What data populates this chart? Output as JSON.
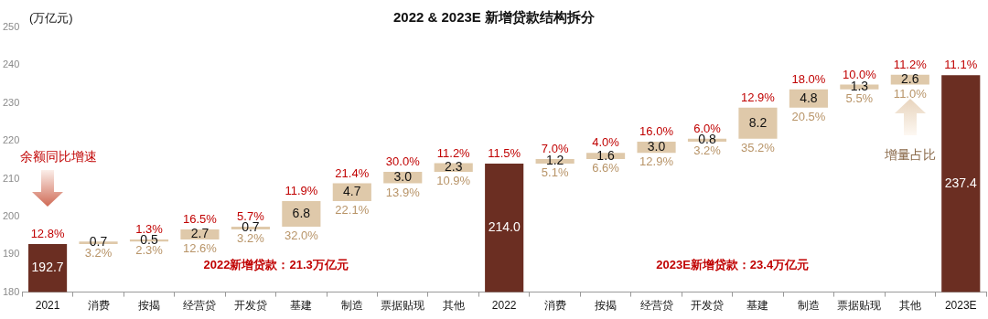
{
  "chart_data": {
    "type": "bar",
    "title": "2022 & 2023E 新增贷款结构拆分",
    "ylabel": "(万亿元)",
    "categories": [
      "2021",
      "消费",
      "按揭",
      "经营贷",
      "开发贷",
      "基建",
      "制造",
      "票据贴现",
      "其他",
      "2022",
      "消费",
      "按揭",
      "经营贷",
      "开发贷",
      "基建",
      "制造",
      "票据贴现",
      "其他",
      "2023E"
    ],
    "values": [
      192.7,
      0.7,
      0.5,
      2.7,
      0.7,
      6.8,
      4.7,
      3.0,
      2.3,
      214.0,
      1.2,
      1.6,
      3.0,
      0.8,
      8.2,
      4.8,
      1.3,
      2.6,
      237.4
    ],
    "value_labels": [
      "192.7",
      "0.7",
      "0.5",
      "2.7",
      "0.7",
      "6.8",
      "4.7",
      "3.0",
      "2.3",
      "214.0",
      "1.2",
      "1.6",
      "3.0",
      "0.8",
      "8.2",
      "4.8",
      "1.3",
      "2.6",
      "237.4"
    ],
    "base": [
      0,
      192.7,
      193.4,
      193.9,
      196.6,
      197.3,
      204.1,
      208.8,
      211.8,
      0,
      214.0,
      215.2,
      216.8,
      219.8,
      220.6,
      228.8,
      233.6,
      234.9,
      0
    ],
    "colors": [
      "#6b2e22",
      "#dfc9aa",
      "#dfc9aa",
      "#dfc9aa",
      "#dfc9aa",
      "#dfc9aa",
      "#dfc9aa",
      "#dfc9aa",
      "#dfc9aa",
      "#6b2e22",
      "#dfc9aa",
      "#dfc9aa",
      "#dfc9aa",
      "#dfc9aa",
      "#dfc9aa",
      "#dfc9aa",
      "#dfc9aa",
      "#dfc9aa",
      "#6b2e22"
    ],
    "ylim": [
      180,
      250
    ],
    "yticks": [
      180,
      190,
      200,
      210,
      220,
      230,
      240,
      250
    ],
    "grid": false,
    "legend": false,
    "annotations": [
      "余额同比增速",
      "2022新增贷款：21.3万亿元",
      "2023E新增贷款：23.4万亿元",
      "增量占比",
      "12.8%",
      "1.3%",
      "16.5%",
      "5.7%",
      "11.9%",
      "21.4%",
      "30.0%",
      "11.2%",
      "11.5%",
      "7.0%",
      "4.0%",
      "16.0%",
      "6.0%",
      "12.9%",
      "18.0%",
      "10.0%",
      "11.2%",
      "11.1%",
      "3.2%",
      "2.3%",
      "12.6%",
      "3.2%",
      "32.0%",
      "22.1%",
      "13.9%",
      "10.9%",
      "5.1%",
      "6.6%",
      "12.9%",
      "3.2%",
      "35.2%",
      "20.5%",
      "5.5%",
      "11.0%"
    ]
  }
}
